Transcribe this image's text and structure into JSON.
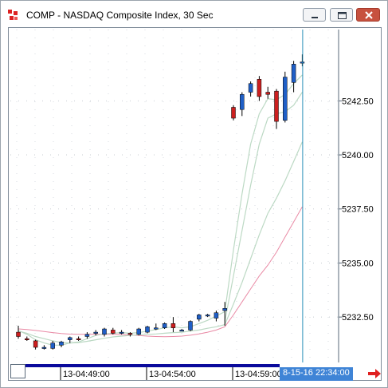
{
  "window": {
    "title": "COMP - NASDAQ Composite Index, 30 Sec"
  },
  "icons": {
    "app": "app-icon",
    "minimize": "minimize-icon",
    "maximize": "maximize-icon",
    "close": "close-icon",
    "scroll_right": "scroll-right-arrow-icon"
  },
  "colors": {
    "up_candle": "#1f5fc7",
    "down_candle": "#cc1f1f",
    "ma_fast": "#bcd9c4",
    "ma_slow": "#e98aa5",
    "crosshair": "#2a8fb8",
    "time_bar": "#0a0a9c",
    "crosshair_label_bg": "#3f84d6",
    "scroll_arrow": "#e02020"
  },
  "crosshair_label": "8-15-16 22:34:00",
  "chart_data": {
    "type": "candlestick",
    "y_ticks": [
      "5242.50",
      "5240.00",
      "5237.50",
      "5235.00",
      "5232.50"
    ],
    "y_tick_values": [
      5242.5,
      5240.0,
      5237.5,
      5235.0,
      5232.5
    ],
    "ylim": [
      5230.4,
      5245.8
    ],
    "x_ticks": [
      "13-04:49:00",
      "13-04:54:00",
      "13-04:59:00"
    ],
    "x_tick_index": [
      5,
      15,
      25
    ],
    "candles": [
      {
        "o": 5231.8,
        "h": 5232.1,
        "l": 5231.5,
        "c": 5231.6
      },
      {
        "o": 5231.5,
        "h": 5231.6,
        "l": 5231.4,
        "c": 5231.45
      },
      {
        "o": 5231.4,
        "h": 5231.45,
        "l": 5231.0,
        "c": 5231.1
      },
      {
        "o": 5231.1,
        "h": 5231.2,
        "l": 5231.0,
        "c": 5231.1
      },
      {
        "o": 5231.05,
        "h": 5231.4,
        "l": 5231.0,
        "c": 5231.3
      },
      {
        "o": 5231.2,
        "h": 5231.4,
        "l": 5231.1,
        "c": 5231.35
      },
      {
        "o": 5231.45,
        "h": 5231.6,
        "l": 5231.3,
        "c": 5231.55
      },
      {
        "o": 5231.5,
        "h": 5231.6,
        "l": 5231.4,
        "c": 5231.45
      },
      {
        "o": 5231.6,
        "h": 5231.8,
        "l": 5231.5,
        "c": 5231.7
      },
      {
        "o": 5231.75,
        "h": 5231.9,
        "l": 5231.65,
        "c": 5231.8
      },
      {
        "o": 5231.7,
        "h": 5232.0,
        "l": 5231.6,
        "c": 5231.95
      },
      {
        "o": 5231.9,
        "h": 5232.0,
        "l": 5231.7,
        "c": 5231.75
      },
      {
        "o": 5231.75,
        "h": 5231.9,
        "l": 5231.7,
        "c": 5231.8
      },
      {
        "o": 5231.75,
        "h": 5231.8,
        "l": 5231.6,
        "c": 5231.7
      },
      {
        "o": 5231.7,
        "h": 5232.0,
        "l": 5231.65,
        "c": 5231.95
      },
      {
        "o": 5231.8,
        "h": 5232.1,
        "l": 5231.75,
        "c": 5232.05
      },
      {
        "o": 5232.0,
        "h": 5232.2,
        "l": 5231.9,
        "c": 5232.0
      },
      {
        "o": 5232.0,
        "h": 5232.25,
        "l": 5231.95,
        "c": 5232.2
      },
      {
        "o": 5232.2,
        "h": 5232.5,
        "l": 5231.8,
        "c": 5232.0
      },
      {
        "o": 5231.9,
        "h": 5231.95,
        "l": 5231.85,
        "c": 5231.9
      },
      {
        "o": 5231.9,
        "h": 5232.35,
        "l": 5231.85,
        "c": 5232.3
      },
      {
        "o": 5232.4,
        "h": 5232.65,
        "l": 5232.3,
        "c": 5232.6
      },
      {
        "o": 5232.55,
        "h": 5232.65,
        "l": 5232.5,
        "c": 5232.6
      },
      {
        "o": 5232.45,
        "h": 5232.8,
        "l": 5232.3,
        "c": 5232.7
      },
      {
        "o": 5232.8,
        "h": 5233.2,
        "l": 5232.1,
        "c": 5232.9
      },
      {
        "o": 5242.2,
        "h": 5242.3,
        "l": 5241.6,
        "c": 5241.7
      },
      {
        "o": 5242.1,
        "h": 5242.9,
        "l": 5241.8,
        "c": 5242.8
      },
      {
        "o": 5242.9,
        "h": 5243.4,
        "l": 5242.7,
        "c": 5243.3
      },
      {
        "o": 5243.5,
        "h": 5243.65,
        "l": 5242.5,
        "c": 5242.7
      },
      {
        "o": 5242.9,
        "h": 5243.15,
        "l": 5242.6,
        "c": 5242.8
      },
      {
        "o": 5242.95,
        "h": 5243.05,
        "l": 5241.2,
        "c": 5241.55
      },
      {
        "o": 5241.6,
        "h": 5243.85,
        "l": 5241.5,
        "c": 5243.6
      },
      {
        "o": 5243.35,
        "h": 5244.35,
        "l": 5242.9,
        "c": 5244.2
      },
      {
        "o": 5244.3,
        "h": 5244.65,
        "l": 5244.1,
        "c": 5244.3
      }
    ],
    "ma_fast": [
      5231.88,
      5231.7,
      5231.45,
      5231.3,
      5231.2,
      5231.2,
      5231.3,
      5231.35,
      5231.5,
      5231.65,
      5231.72,
      5231.75,
      5231.78,
      5231.75,
      5231.78,
      5231.85,
      5231.92,
      5232.0,
      5232.05,
      5232.0,
      5232.05,
      5232.2,
      5232.35,
      5232.55,
      5232.75,
      5235.6,
      5238.2,
      5240.5,
      5241.9,
      5242.6,
      5242.55,
      5242.8,
      5243.3,
      5243.7
    ],
    "ma_slow": [
      5231.85,
      5231.75,
      5231.6,
      5231.5,
      5231.4,
      5231.32,
      5231.3,
      5231.32,
      5231.38,
      5231.45,
      5231.52,
      5231.58,
      5231.62,
      5231.65,
      5231.68,
      5231.7,
      5231.72,
      5231.75,
      5231.78,
      5231.8,
      5231.85,
      5231.9,
      5231.98,
      5232.05,
      5232.15,
      5233.1,
      5234.1,
      5235.2,
      5236.3,
      5237.3,
      5238.0,
      5238.8,
      5239.7,
      5240.6
    ],
    "ma_mid": [
      null,
      null,
      null,
      null,
      null,
      null,
      null,
      null,
      null,
      null,
      null,
      null,
      null,
      null,
      null,
      null,
      null,
      null,
      null,
      null,
      null,
      null,
      null,
      null,
      5232.3,
      5234.4,
      5236.5,
      5238.6,
      5240.5,
      5241.7,
      5241.9,
      5242.0,
      5242.3,
      5242.9
    ],
    "ma_pink": [
      5231.95,
      5231.92,
      5231.88,
      5231.83,
      5231.78,
      5231.74,
      5231.71,
      5231.7,
      5231.7,
      5231.7,
      5231.7,
      5231.7,
      5231.69,
      5231.67,
      5231.65,
      5231.62,
      5231.6,
      5231.59,
      5231.6,
      5231.62,
      5231.66,
      5231.72,
      5231.8,
      5231.9,
      5232.05,
      5232.6,
      5233.2,
      5233.8,
      5234.4,
      5234.9,
      5235.5,
      5236.2,
      5236.9,
      5237.6
    ]
  }
}
